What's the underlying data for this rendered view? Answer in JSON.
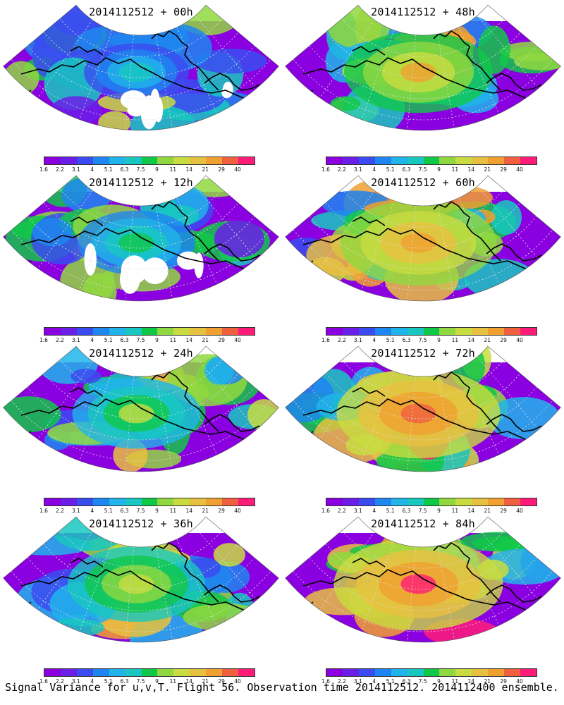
{
  "panels": [
    {
      "title": "2014112512 + 00h",
      "intensity": 0.25
    },
    {
      "title": "2014112512 + 48h",
      "intensity": 0.72
    },
    {
      "title": "2014112512 + 12h",
      "intensity": 0.38
    },
    {
      "title": "2014112512 + 60h",
      "intensity": 0.8
    },
    {
      "title": "2014112512 + 24h",
      "intensity": 0.5
    },
    {
      "title": "2014112512 + 72h",
      "intensity": 0.88
    },
    {
      "title": "2014112512 + 36h",
      "intensity": 0.6
    },
    {
      "title": "2014112512 + 84h",
      "intensity": 0.94
    }
  ],
  "colorbar": {
    "labels": [
      "1.6",
      "2.2",
      "3.1",
      "4",
      "5.1",
      "6.3",
      "7.5",
      "9",
      "11",
      "14",
      "21",
      "29",
      "40"
    ],
    "colors": [
      "#8a00e0",
      "#6a1ee8",
      "#3a4cf0",
      "#1e86f0",
      "#20b4ea",
      "#18c8c0",
      "#10c848",
      "#90d840",
      "#c8dc40",
      "#e8c040",
      "#f0a030",
      "#f06040",
      "#ff1c78"
    ]
  },
  "caption": "Signal Variance for u,v,T. Flight 56. Observation time 2014112512. 2014112400 ensemble."
}
